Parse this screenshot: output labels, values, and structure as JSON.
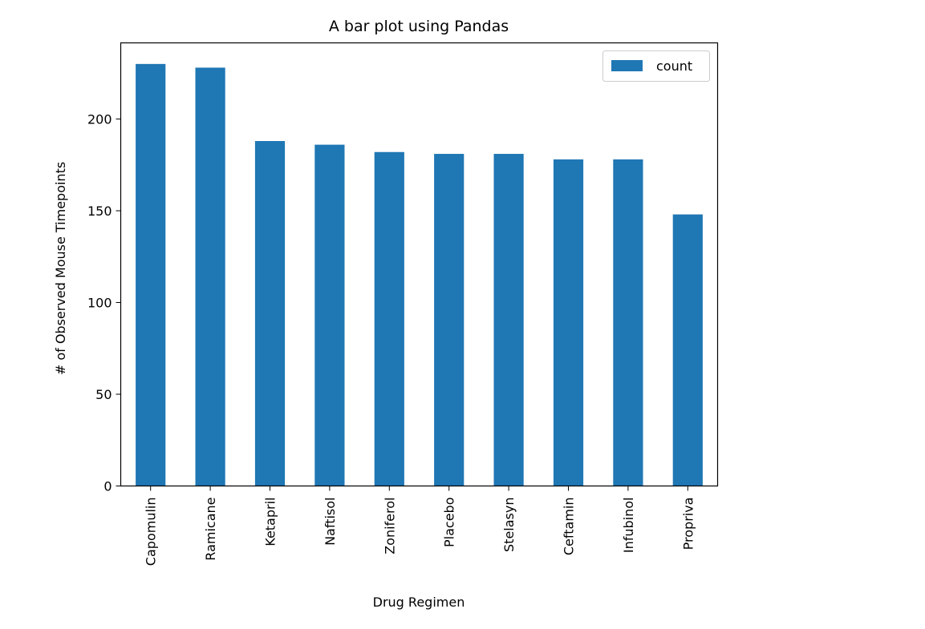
{
  "chart_data": {
    "type": "bar",
    "title": "A bar plot using Pandas",
    "xlabel": "Drug Regimen",
    "ylabel": "# of Observed Mouse Timepoints",
    "categories": [
      "Capomulin",
      "Ramicane",
      "Ketapril",
      "Naftisol",
      "Zoniferol",
      "Placebo",
      "Stelasyn",
      "Ceftamin",
      "Infubinol",
      "Propriva"
    ],
    "series": [
      {
        "name": "count",
        "values": [
          230,
          228,
          188,
          186,
          182,
          181,
          181,
          178,
          178,
          148
        ],
        "color": "#1f77b4"
      }
    ],
    "ylim": [
      0,
      241.5
    ],
    "yticks": [
      0,
      50,
      100,
      150,
      200
    ],
    "grid": false,
    "legend_position": "top-right"
  }
}
